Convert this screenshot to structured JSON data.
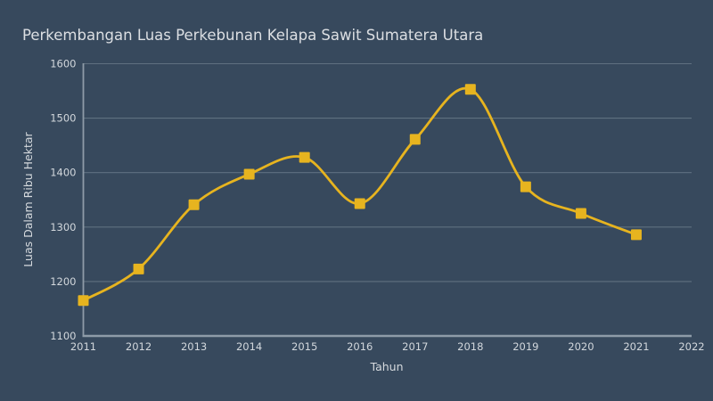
{
  "chart_data": {
    "type": "line",
    "title": "Perkembangan Luas Perkebunan Kelapa Sawit Sumatera Utara",
    "xlabel": "Tahun",
    "ylabel": "Luas Dalam Ribu Hektar",
    "x": [
      2011,
      2012,
      2013,
      2014,
      2015,
      2016,
      2017,
      2018,
      2019,
      2020,
      2021
    ],
    "values": [
      1165,
      1223,
      1341,
      1397,
      1428,
      1343,
      1461,
      1553,
      1374,
      1325,
      1286
    ],
    "series_name": "Luas Perkebunan Kelapa Sawit",
    "xticks": [
      2011,
      2012,
      2013,
      2014,
      2015,
      2016,
      2017,
      2018,
      2019,
      2020,
      2021,
      2022
    ],
    "yticks": [
      1100,
      1200,
      1300,
      1400,
      1500,
      1600
    ],
    "xlim": [
      2011,
      2022
    ],
    "ylim": [
      1100,
      1600
    ],
    "grid": true,
    "legend": "none",
    "line_style": "smooth",
    "marker": "square",
    "colors": {
      "background": "#37495d",
      "line": "#e7b41f",
      "marker": "#e7b41f",
      "grid": "#5f7080",
      "spine": "#8e9ba8",
      "text": "#d6dade",
      "title_text": "#dcdfe3"
    }
  }
}
